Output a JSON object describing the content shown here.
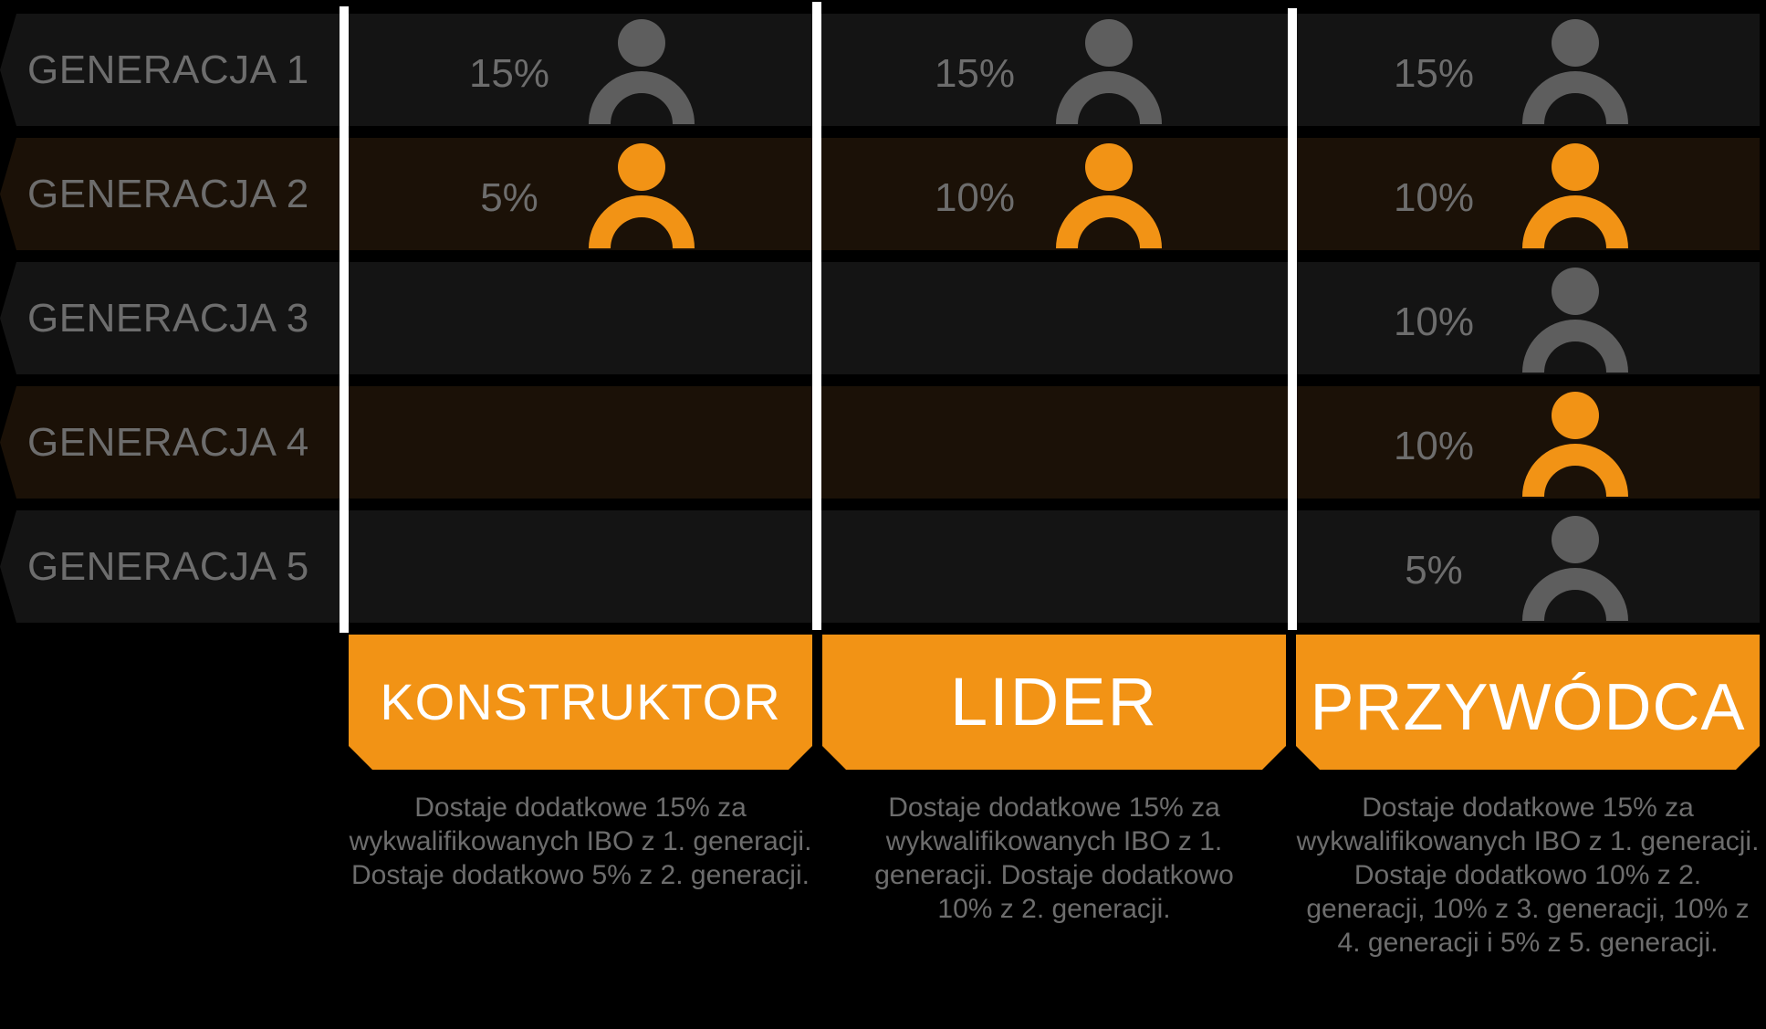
{
  "colors": {
    "accent": "#f29315",
    "icon_grey": "#5e5e5e",
    "text_grey": "#6d6d6d",
    "row_dark": "#141414",
    "row_brown": "#1b1107",
    "divider": "#ffffff"
  },
  "rows": [
    {
      "label": "GENERACJA 1",
      "tone": "grey"
    },
    {
      "label": "GENERACJA 2",
      "tone": "orange"
    },
    {
      "label": "GENERACJA 3",
      "tone": "grey"
    },
    {
      "label": "GENERACJA 4",
      "tone": "orange"
    },
    {
      "label": "GENERACJA 5",
      "tone": "grey"
    }
  ],
  "levels": [
    {
      "title": "KONSTRUKTOR",
      "percentages": [
        "15%",
        "5%"
      ],
      "description": "Dostaje dodatkowe 15% za wykwalifikowanych IBO z 1. generacji. Dostaje dodatkowo 5% z 2. generacji."
    },
    {
      "title": "LIDER",
      "percentages": [
        "15%",
        "10%"
      ],
      "description": "Dostaje dodatkowe 15% za wykwalifikowanych IBO z 1. generacji. Dostaje dodatkowo 10% z 2. generacji."
    },
    {
      "title": "PRZYWÓDCA",
      "percentages": [
        "15%",
        "10%",
        "10%",
        "10%",
        "5%"
      ],
      "description": "Dostaje dodatkowe 15% za wykwalifikowanych IBO z 1. generacji. Dostaje dodatkowo 10% z 2. generacji, 10% z 3. generacji, 10% z 4. generacji i 5% z 5. generacji."
    }
  ],
  "icons": {
    "person": "person-icon"
  }
}
